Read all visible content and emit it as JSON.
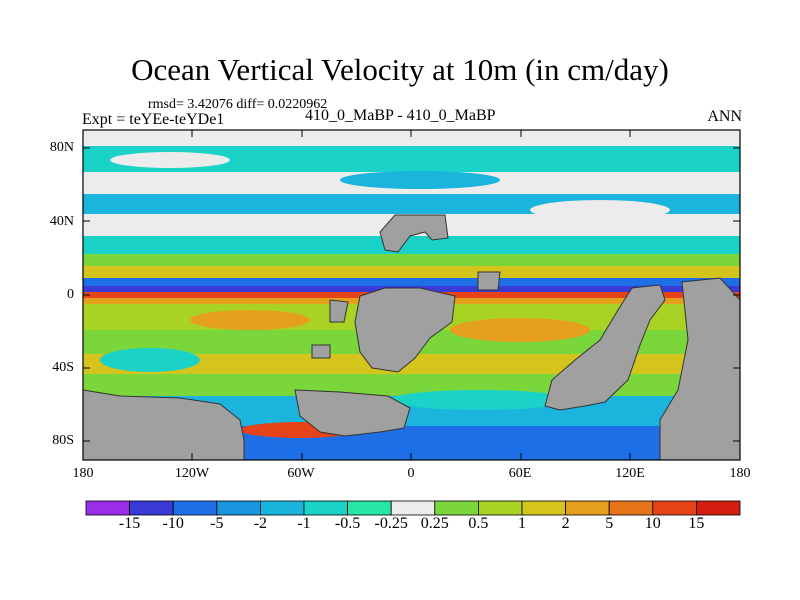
{
  "title": "Ocean Vertical Velocity at 10m (in cm/day)",
  "stats": "rmsd= 3.42076 diff= 0.0220962",
  "expt": "Expt = teYEe-teYDe1",
  "center_label": "410_0_MaBP - 410_0_MaBP",
  "season": "ANN",
  "axes": {
    "y_ticks": [
      "80N",
      "40N",
      "0",
      "40S",
      "80S"
    ],
    "x_ticks": [
      "180",
      "120W",
      "60W",
      "0",
      "60E",
      "120E",
      "180"
    ]
  },
  "colorbar": {
    "labels": [
      "-15",
      "-10",
      "-5",
      "-2",
      "-1",
      "-0.5",
      "-0.25",
      "0.25",
      "0.5",
      "1",
      "2",
      "5",
      "10",
      "15"
    ],
    "colors": [
      "#9a2ee6",
      "#3a3ad6",
      "#1e6ee6",
      "#1a96e0",
      "#18b4dc",
      "#1ad2c8",
      "#27e6a6",
      "#ececec",
      "#7ad63a",
      "#a8d224",
      "#d4c41c",
      "#e4a01c",
      "#e67418",
      "#e64418",
      "#d41e10"
    ]
  },
  "land_color": "#a0a0a0"
}
